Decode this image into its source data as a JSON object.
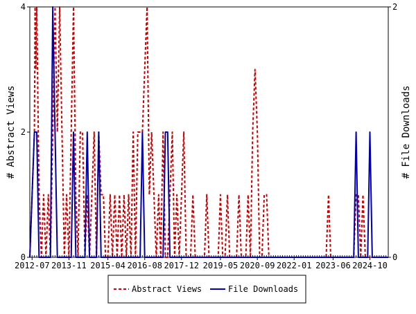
{
  "chart_data": {
    "type": "line",
    "title": "",
    "xlabel": "",
    "ylabel_left": "# Abstract Views",
    "ylabel_right": "# File Downloads",
    "x_ticks": [
      "2012-07",
      "2013-11",
      "2015-04",
      "2016-08",
      "2017-12",
      "2019-05",
      "2020-09",
      "2022-01",
      "2023-06",
      "2024-10"
    ],
    "x_start": "2012-06",
    "x_end": "2025-06",
    "y_left_range": [
      0,
      4
    ],
    "y_left_ticks": [
      "0",
      "2",
      "4"
    ],
    "y_right_range": [
      0,
      2
    ],
    "y_right_ticks": [
      "0",
      "2"
    ],
    "legend_position": "bottom",
    "colors": {
      "abstract_views": "#cc0000",
      "file_downloads": "#0000aa"
    },
    "series": [
      {
        "name": "Abstract Views",
        "axis": "left",
        "style": "dashed",
        "points": [
          [
            "2012-06-01",
            0
          ],
          [
            "2012-07-01",
            1
          ],
          [
            "2012-08-01",
            2
          ],
          [
            "2012-08-10",
            4
          ],
          [
            "2012-08-20",
            3
          ],
          [
            "2012-09-01",
            4
          ],
          [
            "2012-10-01",
            1
          ],
          [
            "2012-11-01",
            0
          ],
          [
            "2012-12-01",
            1
          ],
          [
            "2013-01-01",
            0
          ],
          [
            "2013-02-01",
            1
          ],
          [
            "2013-03-01",
            0
          ],
          [
            "2013-04-01",
            2
          ],
          [
            "2013-05-01",
            4
          ],
          [
            "2013-06-01",
            2
          ],
          [
            "2013-07-01",
            4
          ],
          [
            "2013-08-01",
            2
          ],
          [
            "2013-09-01",
            0
          ],
          [
            "2013-10-01",
            1
          ],
          [
            "2013-11-01",
            0
          ],
          [
            "2013-12-01",
            2
          ],
          [
            "2014-01-01",
            4
          ],
          [
            "2014-02-01",
            1
          ],
          [
            "2014-03-01",
            0
          ],
          [
            "2014-04-01",
            2
          ],
          [
            "2014-05-01",
            2
          ],
          [
            "2014-06-01",
            0
          ],
          [
            "2014-07-01",
            1
          ],
          [
            "2014-08-01",
            0
          ],
          [
            "2014-09-01",
            1
          ],
          [
            "2014-10-01",
            2
          ],
          [
            "2014-11-01",
            0
          ],
          [
            "2014-12-01",
            2
          ],
          [
            "2015-01-01",
            1
          ],
          [
            "2015-02-01",
            1
          ],
          [
            "2015-03-01",
            0
          ],
          [
            "2015-04-01",
            0
          ],
          [
            "2015-05-01",
            1
          ],
          [
            "2015-06-01",
            0
          ],
          [
            "2015-07-01",
            1
          ],
          [
            "2015-08-01",
            0
          ],
          [
            "2015-09-01",
            1
          ],
          [
            "2015-10-01",
            0
          ],
          [
            "2015-11-01",
            1
          ],
          [
            "2015-12-01",
            0
          ],
          [
            "2016-01-01",
            1
          ],
          [
            "2016-02-01",
            0
          ],
          [
            "2016-03-01",
            2
          ],
          [
            "2016-04-01",
            0
          ],
          [
            "2016-05-01",
            2
          ],
          [
            "2016-06-01",
            2
          ],
          [
            "2016-07-01",
            2
          ],
          [
            "2016-08-01",
            3
          ],
          [
            "2016-09-01",
            4
          ],
          [
            "2016-10-01",
            1
          ],
          [
            "2016-11-01",
            2
          ],
          [
            "2016-12-01",
            1
          ],
          [
            "2017-01-01",
            0
          ],
          [
            "2017-02-01",
            1
          ],
          [
            "2017-03-01",
            0
          ],
          [
            "2017-04-01",
            2
          ],
          [
            "2017-05-01",
            0
          ],
          [
            "2017-06-01",
            0
          ],
          [
            "2017-07-01",
            1
          ],
          [
            "2017-08-01",
            2
          ],
          [
            "2017-09-01",
            0
          ],
          [
            "2017-10-01",
            1
          ],
          [
            "2017-11-01",
            0
          ],
          [
            "2017-12-01",
            1
          ],
          [
            "2018-01-01",
            2
          ],
          [
            "2018-02-01",
            0
          ],
          [
            "2018-03-01",
            0
          ],
          [
            "2018-04-01",
            0
          ],
          [
            "2018-05-01",
            1
          ],
          [
            "2018-06-01",
            0
          ],
          [
            "2018-07-01",
            0
          ],
          [
            "2018-08-01",
            0
          ],
          [
            "2018-09-01",
            0
          ],
          [
            "2018-10-01",
            0
          ],
          [
            "2018-11-01",
            1
          ],
          [
            "2018-12-01",
            0
          ],
          [
            "2019-01-01",
            0
          ],
          [
            "2019-02-01",
            0
          ],
          [
            "2019-03-01",
            0
          ],
          [
            "2019-04-01",
            0
          ],
          [
            "2019-05-01",
            1
          ],
          [
            "2019-06-01",
            0
          ],
          [
            "2019-07-01",
            0
          ],
          [
            "2019-08-01",
            1
          ],
          [
            "2019-09-01",
            0
          ],
          [
            "2019-10-01",
            0
          ],
          [
            "2019-11-01",
            0
          ],
          [
            "2019-12-01",
            0
          ],
          [
            "2020-01-01",
            1
          ],
          [
            "2020-02-01",
            0
          ],
          [
            "2020-03-01",
            0
          ],
          [
            "2020-04-01",
            0
          ],
          [
            "2020-05-01",
            1
          ],
          [
            "2020-06-01",
            0
          ],
          [
            "2020-07-01",
            2
          ],
          [
            "2020-08-01",
            3
          ],
          [
            "2020-09-01",
            2
          ],
          [
            "2020-10-01",
            0
          ],
          [
            "2020-11-01",
            0
          ],
          [
            "2020-12-01",
            1
          ],
          [
            "2021-01-01",
            1
          ],
          [
            "2021-02-01",
            0
          ],
          [
            "2021-03-01",
            0
          ],
          [
            "2021-06-01",
            0
          ],
          [
            "2022-01-01",
            0
          ],
          [
            "2023-01-01",
            0
          ],
          [
            "2023-03-01",
            0
          ],
          [
            "2023-04-01",
            1
          ],
          [
            "2023-05-01",
            0
          ],
          [
            "2023-08-01",
            0
          ],
          [
            "2023-09-01",
            0
          ],
          [
            "2023-10-01",
            0
          ],
          [
            "2023-11-01",
            0
          ],
          [
            "2024-01-01",
            0
          ],
          [
            "2024-03-01",
            0
          ],
          [
            "2024-04-01",
            1
          ],
          [
            "2024-05-01",
            1
          ],
          [
            "2024-06-01",
            0
          ],
          [
            "2024-07-01",
            1
          ],
          [
            "2024-08-01",
            0
          ],
          [
            "2024-09-01",
            0
          ],
          [
            "2024-10-01",
            0
          ],
          [
            "2025-06-01",
            0
          ]
        ]
      },
      {
        "name": "File Downloads",
        "axis": "right",
        "style": "solid",
        "points": [
          [
            "2012-06-01",
            0
          ],
          [
            "2012-08-01",
            1
          ],
          [
            "2012-09-01",
            1
          ],
          [
            "2012-10-01",
            0
          ],
          [
            "2013-03-01",
            0
          ],
          [
            "2013-04-01",
            2
          ],
          [
            "2013-05-01",
            1
          ],
          [
            "2013-06-01",
            0
          ],
          [
            "2013-08-01",
            0
          ],
          [
            "2013-09-01",
            0
          ],
          [
            "2013-12-01",
            0
          ],
          [
            "2014-01-01",
            1
          ],
          [
            "2014-02-01",
            0
          ],
          [
            "2014-06-01",
            0
          ],
          [
            "2014-07-01",
            1
          ],
          [
            "2014-08-01",
            0
          ],
          [
            "2014-11-01",
            0
          ],
          [
            "2014-12-01",
            1
          ],
          [
            "2015-01-01",
            0
          ],
          [
            "2015-03-01",
            0
          ],
          [
            "2016-06-01",
            0
          ],
          [
            "2016-07-01",
            1
          ],
          [
            "2016-08-01",
            0
          ],
          [
            "2017-04-01",
            0
          ],
          [
            "2017-05-01",
            1
          ],
          [
            "2017-06-01",
            1
          ],
          [
            "2017-07-01",
            0
          ],
          [
            "2024-03-01",
            0
          ],
          [
            "2024-04-01",
            1
          ],
          [
            "2024-05-01",
            0
          ],
          [
            "2024-09-01",
            0
          ],
          [
            "2024-10-01",
            1
          ],
          [
            "2024-11-01",
            0
          ],
          [
            "2025-06-01",
            0
          ]
        ]
      }
    ]
  }
}
